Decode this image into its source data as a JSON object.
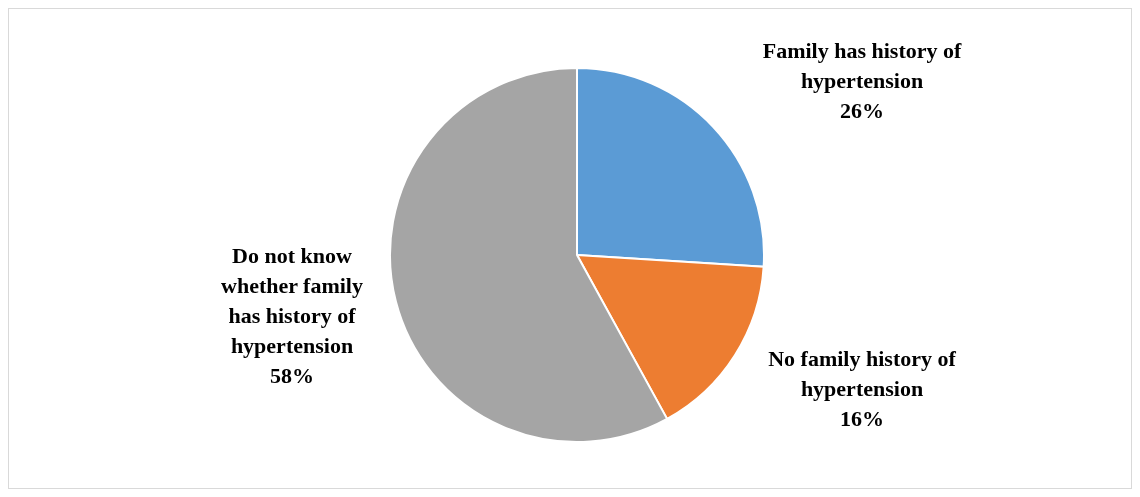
{
  "chart_data": {
    "type": "pie",
    "categories": [
      "Family has history of hypertension",
      "No family history of hypertension",
      "Do not know whether family has history of hypertension"
    ],
    "values": [
      26,
      16,
      58
    ],
    "value_labels": [
      "26%",
      "16%",
      "58%"
    ],
    "colors": [
      "#5b9bd5",
      "#ed7d31",
      "#a5a5a5"
    ],
    "legend": false
  }
}
